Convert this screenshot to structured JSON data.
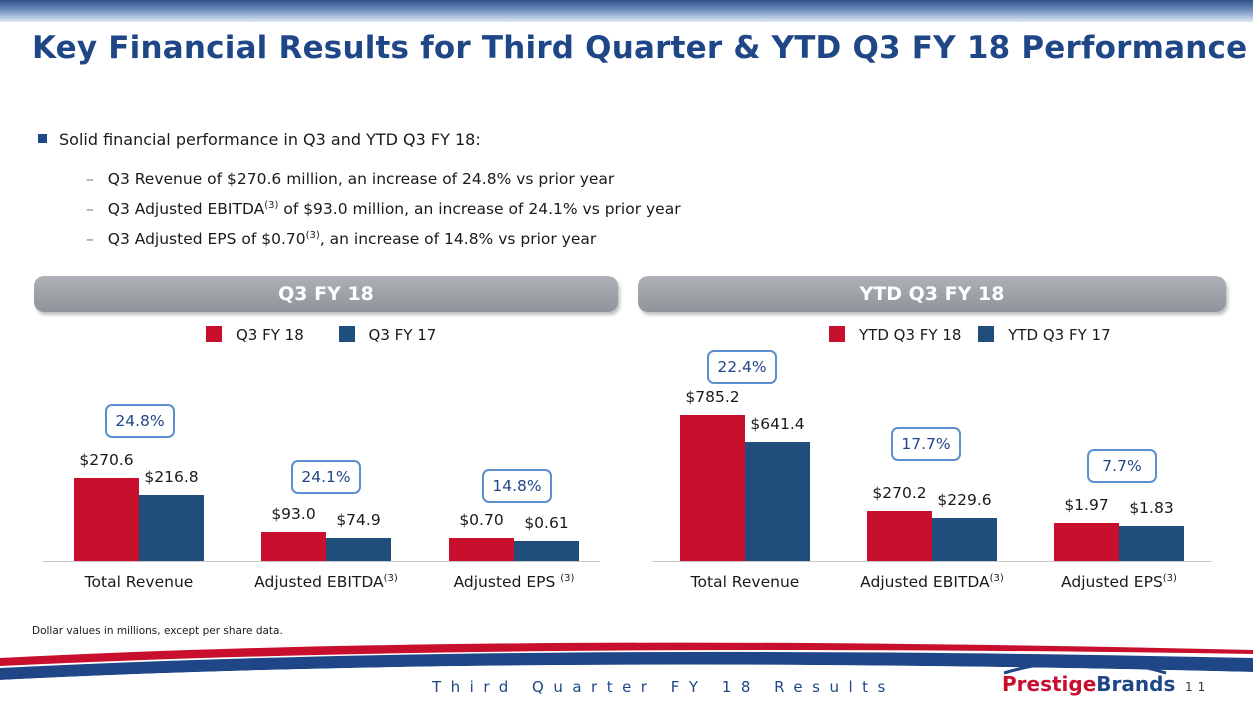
{
  "title": "Key Financial Results for Third Quarter & YTD Q3 FY 18 Performance",
  "bullets": {
    "main": "Solid financial performance in Q3 and YTD Q3 FY 18:",
    "sub1": "Q3 Revenue of $270.6 million, an increase of 24.8% vs prior year",
    "sub2_a": "Q3 Adjusted EBITDA",
    "sub2_sup": "(3)",
    "sub2_b": " of $93.0 million, an increase of 24.1% vs prior year",
    "sub3_a": "Q3 Adjusted EPS of $0.70",
    "sub3_sup": "(3)",
    "sub3_b": ", an increase of 14.8% vs prior year"
  },
  "colors": {
    "current": "#c8102e",
    "prior": "#1f4e7d",
    "title": "#1f4788"
  },
  "chart_data": [
    {
      "type": "bar",
      "panel_title": "Q3 FY 18",
      "legend": [
        "Q3 FY 18",
        "Q3 FY 17"
      ],
      "categories": [
        "Total Revenue",
        "Adjusted EBITDA",
        "Adjusted EPS "
      ],
      "category_sups": [
        "",
        "(3)",
        "(3)"
      ],
      "series": [
        {
          "name": "Q3 FY 18",
          "values": [
            270.6,
            93.0,
            0.7
          ],
          "labels": [
            "$270.6",
            "$93.0",
            "$0.70"
          ]
        },
        {
          "name": "Q3 FY 17",
          "values": [
            216.8,
            74.9,
            0.61
          ],
          "labels": [
            "$216.8",
            "$74.9",
            "$0.61"
          ]
        }
      ],
      "growth": [
        "24.8%",
        "24.1%",
        "14.8%"
      ]
    },
    {
      "type": "bar",
      "panel_title": "YTD Q3 FY 18",
      "legend": [
        "YTD Q3 FY 18",
        "YTD Q3 FY 17"
      ],
      "categories": [
        "Total Revenue",
        "Adjusted EBITDA",
        "Adjusted EPS"
      ],
      "category_sups": [
        "",
        "(3)",
        "(3)"
      ],
      "series": [
        {
          "name": "YTD Q3 FY 18",
          "values": [
            785.2,
            270.2,
            1.97
          ],
          "labels": [
            "$785.2",
            "$270.2",
            "$1.97"
          ]
        },
        {
          "name": "YTD Q3 FY 17",
          "values": [
            641.4,
            229.6,
            1.83
          ],
          "labels": [
            "$641.4",
            "$229.6",
            "$1.83"
          ]
        }
      ],
      "growth": [
        "22.4%",
        "17.7%",
        "7.7%"
      ]
    }
  ],
  "footnote": "Dollar values in millions, except per share data.",
  "footer": {
    "text": "Third Quarter FY 18 Results",
    "logo_part1": "Prestige",
    "logo_part2": "Brands",
    "page": "11"
  }
}
